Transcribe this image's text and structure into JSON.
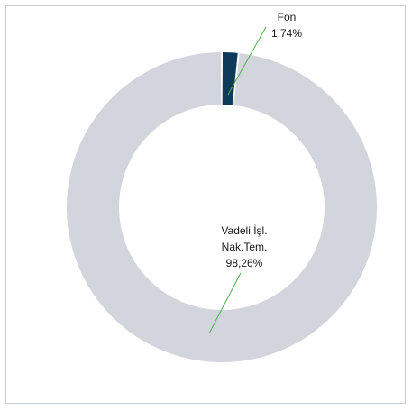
{
  "chart_data": {
    "type": "pie",
    "donut": true,
    "slices": [
      {
        "name": "Fon",
        "value": 1.74,
        "label": "1,74%",
        "color": "#0f3a57"
      },
      {
        "name": "Vadeli İşl. Nak.Tem.",
        "name_lines": [
          "Vadeli İşl.",
          "Nak.Tem."
        ],
        "value": 98.26,
        "label": "98,26%",
        "color": "#d2d6dc"
      }
    ],
    "leader_color": "#4caf50",
    "legend": "none"
  }
}
